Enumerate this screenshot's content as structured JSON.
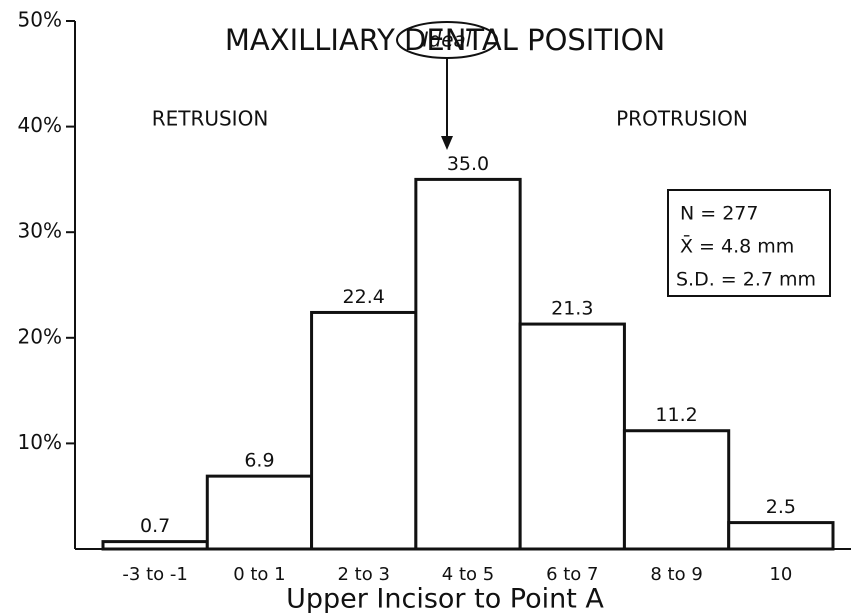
{
  "chart_data": {
    "type": "bar",
    "title": "MAXILLIARY DENTAL POSITION",
    "xlabel": "Upper Incisor to Point A",
    "categories": [
      "-3 to -1",
      "0 to 1",
      "2 to 3",
      "4 to 5",
      "6 to 7",
      "8 to 9",
      "10"
    ],
    "values": [
      0.7,
      6.9,
      22.4,
      35,
      21.3,
      11.2,
      2.5
    ],
    "value_labels": [
      "0.7",
      "6.9",
      "22.4",
      "35.0",
      "21.3",
      "11.2",
      "2.5"
    ],
    "color": "#ffffff",
    "ylim": [
      0,
      50
    ],
    "yticks": [
      {
        "value": 10,
        "label": "10%"
      },
      {
        "value": 20,
        "label": "20%"
      },
      {
        "value": 30,
        "label": "30%"
      },
      {
        "value": 40,
        "label": "40%"
      },
      {
        "value": 50,
        "label": "50%"
      }
    ],
    "annotations": {
      "left": "RETRUSION",
      "right": "PROTRUSION",
      "ideal": "Ideal",
      "stats": [
        "N = 277",
        "X̄ = 4.8 mm",
        "S.D. = 2.7 mm"
      ]
    }
  }
}
